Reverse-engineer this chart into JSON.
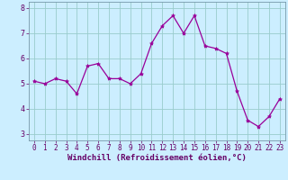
{
  "x": [
    0,
    1,
    2,
    3,
    4,
    5,
    6,
    7,
    8,
    9,
    10,
    11,
    12,
    13,
    14,
    15,
    16,
    17,
    18,
    19,
    20,
    21,
    22,
    23
  ],
  "y": [
    5.1,
    5.0,
    5.2,
    5.1,
    4.6,
    5.7,
    5.8,
    5.2,
    5.2,
    5.0,
    5.4,
    6.6,
    7.3,
    7.7,
    7.0,
    7.7,
    6.5,
    6.4,
    6.2,
    4.7,
    3.55,
    3.3,
    3.7,
    4.4
  ],
  "line_color": "#990099",
  "marker": "*",
  "marker_size": 3,
  "bg_color": "#cceeff",
  "grid_color": "#99cccc",
  "xlabel": "Windchill (Refroidissement éolien,°C)",
  "xlabel_color": "#660066",
  "tick_color": "#660066",
  "xlim": [
    -0.5,
    23.5
  ],
  "ylim": [
    2.75,
    8.25
  ],
  "yticks": [
    3,
    4,
    5,
    6,
    7,
    8
  ],
  "xticks": [
    0,
    1,
    2,
    3,
    4,
    5,
    6,
    7,
    8,
    9,
    10,
    11,
    12,
    13,
    14,
    15,
    16,
    17,
    18,
    19,
    20,
    21,
    22,
    23
  ],
  "spine_color": "#7799aa",
  "xlabel_fontsize": 6.5,
  "tick_fontsize": 5.5
}
